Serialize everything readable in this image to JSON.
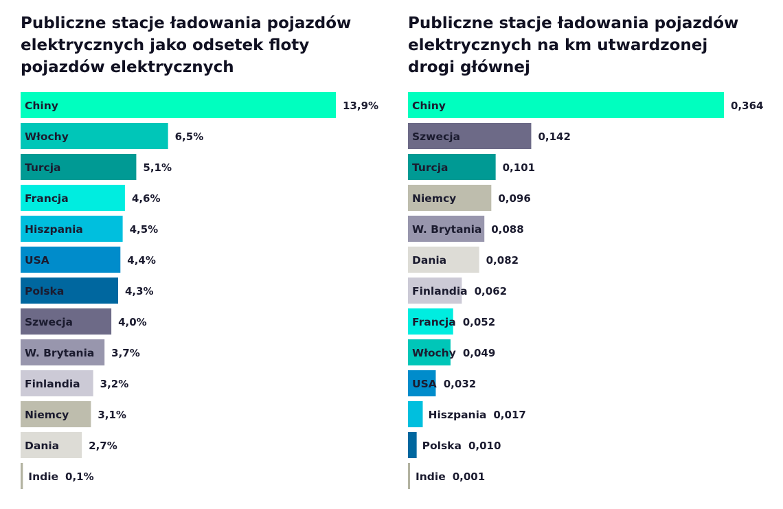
{
  "chart_data": [
    {
      "type": "bar",
      "orientation": "horizontal",
      "title": "Publiczne stacje ładowania pojazdów elektrycznych jako odsetek floty pojazdów elektrycznych",
      "categories": [
        "Chiny",
        "Włochy",
        "Turcja",
        "Francja",
        "Hiszpania",
        "USA",
        "Polska",
        "Szwecja",
        "W. Brytania",
        "Finlandia",
        "Niemcy",
        "Dania",
        "Indie"
      ],
      "values": [
        13.9,
        6.5,
        5.1,
        4.6,
        4.5,
        4.4,
        4.3,
        4.0,
        3.7,
        3.2,
        3.1,
        2.7,
        0.1
      ],
      "value_labels": [
        "13,9%",
        "6,5%",
        "5,1%",
        "4,6%",
        "4,5%",
        "4,4%",
        "4,3%",
        "4,0%",
        "3,7%",
        "3,2%",
        "3,1%",
        "2,7%",
        "0,1%"
      ],
      "colors": [
        "#00ffbf",
        "#00c6b8",
        "#009a94",
        "#00ede0",
        "#00bfde",
        "#008ccb",
        "#00679f",
        "#6d6a87",
        "#9896ad",
        "#cccad6",
        "#bebdad",
        "#dddcd6",
        "#b3b3a1"
      ],
      "xlim": [
        0,
        13.9
      ],
      "grid": false,
      "legend": "none"
    },
    {
      "type": "bar",
      "orientation": "horizontal",
      "title": "Publiczne stacje ładowania pojazdów elektrycznych na km utwardzonej drogi głównej",
      "categories": [
        "Chiny",
        "Szwecja",
        "Turcja",
        "Niemcy",
        "W. Brytania",
        "Dania",
        "Finlandia",
        "Francja",
        "Włochy",
        "USA",
        "Hiszpania",
        "Polska",
        "Indie"
      ],
      "values": [
        0.364,
        0.142,
        0.101,
        0.096,
        0.088,
        0.082,
        0.062,
        0.052,
        0.049,
        0.032,
        0.017,
        0.01,
        0.001
      ],
      "value_labels": [
        "0,364",
        "0,142",
        "0,101",
        "0,096",
        "0,088",
        "0,082",
        "0,062",
        "0,052",
        "0,049",
        "0,032",
        "0,017",
        "0,010",
        "0,001"
      ],
      "colors": [
        "#00ffbf",
        "#6d6a87",
        "#009a94",
        "#bebdad",
        "#9896ad",
        "#dddcd6",
        "#cccad6",
        "#00ede0",
        "#00c6b8",
        "#008ccb",
        "#00bfde",
        "#00679f",
        "#b3b3a1"
      ],
      "xlim": [
        0,
        0.364
      ],
      "grid": false,
      "legend": "none"
    }
  ]
}
